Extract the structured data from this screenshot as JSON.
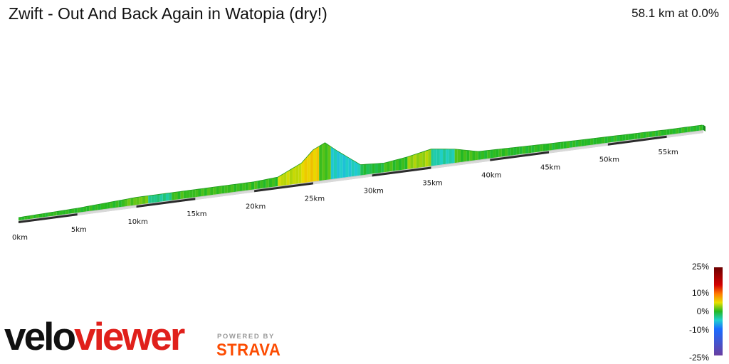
{
  "header": {
    "title": "Zwift - Out And Back Again in Watopia (dry!)",
    "summary": "58.1 km at 0.0%"
  },
  "chart_data": {
    "type": "area",
    "title": "Zwift - Out And Back Again in Watopia (dry!)",
    "distance_km": 58.1,
    "average_grade": "0.0%",
    "x_ticks": [
      "0km",
      "5km",
      "10km",
      "15km",
      "20km",
      "25km",
      "30km",
      "35km",
      "40km",
      "45km",
      "50km",
      "55km"
    ],
    "legend": {
      "type": "gradient",
      "labels": [
        "25%",
        "10%",
        "0%",
        "-10%",
        "-25%"
      ],
      "stops": [
        {
          "grade": 25,
          "color": "#6b0000"
        },
        {
          "grade": 15,
          "color": "#d40000"
        },
        {
          "grade": 10,
          "color": "#ff7a00"
        },
        {
          "grade": 5,
          "color": "#e8e000"
        },
        {
          "grade": 0,
          "color": "#22b822"
        },
        {
          "grade": -5,
          "color": "#20d0d0"
        },
        {
          "grade": -10,
          "color": "#1a6cff"
        },
        {
          "grade": -25,
          "color": "#6a3ea0"
        }
      ]
    },
    "profile": [
      {
        "km": 0,
        "elev_m": 8
      },
      {
        "km": 5,
        "elev_m": 10
      },
      {
        "km": 10,
        "elev_m": 14
      },
      {
        "km": 15,
        "elev_m": 14
      },
      {
        "km": 20,
        "elev_m": 14
      },
      {
        "km": 22,
        "elev_m": 16
      },
      {
        "km": 24,
        "elev_m": 30
      },
      {
        "km": 25,
        "elev_m": 45
      },
      {
        "km": 26,
        "elev_m": 52
      },
      {
        "km": 27,
        "elev_m": 40
      },
      {
        "km": 29,
        "elev_m": 18
      },
      {
        "km": 31,
        "elev_m": 16
      },
      {
        "km": 33,
        "elev_m": 20
      },
      {
        "km": 35,
        "elev_m": 26
      },
      {
        "km": 37,
        "elev_m": 22
      },
      {
        "km": 39,
        "elev_m": 15
      },
      {
        "km": 45,
        "elev_m": 13
      },
      {
        "km": 50,
        "elev_m": 12
      },
      {
        "km": 55,
        "elev_m": 11
      },
      {
        "km": 58.1,
        "elev_m": 11
      }
    ],
    "segment_grades": [
      {
        "from_km": 0,
        "to_km": 9,
        "grade": 0.2
      },
      {
        "from_km": 9,
        "to_km": 11,
        "grade": 1.5
      },
      {
        "from_km": 11,
        "to_km": 13,
        "grade": -3
      },
      {
        "from_km": 13,
        "to_km": 22,
        "grade": 0.5
      },
      {
        "from_km": 22,
        "to_km": 24,
        "grade": 4
      },
      {
        "from_km": 24,
        "to_km": 25.5,
        "grade": 6
      },
      {
        "from_km": 25.5,
        "to_km": 26.5,
        "grade": 1
      },
      {
        "from_km": 26.5,
        "to_km": 29,
        "grade": -5
      },
      {
        "from_km": 29,
        "to_km": 31,
        "grade": -1
      },
      {
        "from_km": 31,
        "to_km": 33,
        "grade": 0.5
      },
      {
        "from_km": 33,
        "to_km": 35,
        "grade": 3
      },
      {
        "from_km": 35,
        "to_km": 37,
        "grade": -4
      },
      {
        "from_km": 37,
        "to_km": 39,
        "grade": 0.5
      },
      {
        "from_km": 39,
        "to_km": 58.1,
        "grade": 0
      }
    ]
  },
  "branding": {
    "logo_part1": "velo",
    "logo_part2": "viewer",
    "powered_by": "POWERED BY",
    "strava": "STRAVA",
    "colors": {
      "velo": "#111111",
      "viewer": "#e0201b",
      "strava": "#fc4c02"
    }
  }
}
